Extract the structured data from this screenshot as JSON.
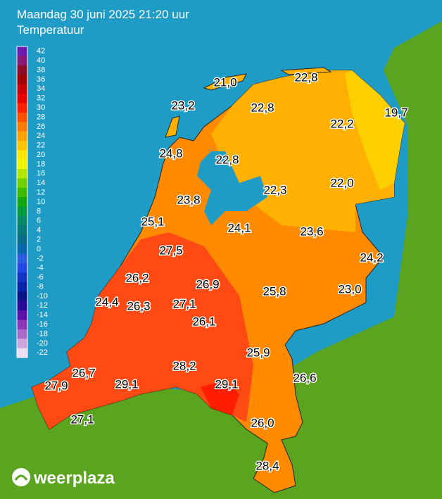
{
  "header": {
    "title": "Maandag 30 juni 2025 21:20 uur",
    "subtitle": "Temperatuur"
  },
  "legend": {
    "ticks": [
      {
        "value": 42,
        "color": "#6a1bb0"
      },
      {
        "value": 40,
        "color": "#8a1a7a"
      },
      {
        "value": 38,
        "color": "#8b0a2a"
      },
      {
        "value": 36,
        "color": "#a00000"
      },
      {
        "value": 34,
        "color": "#c80000"
      },
      {
        "value": 32,
        "color": "#e80000"
      },
      {
        "value": 30,
        "color": "#ff2000"
      },
      {
        "value": 28,
        "color": "#ff5000"
      },
      {
        "value": 26,
        "color": "#ff7c00"
      },
      {
        "value": 24,
        "color": "#ffa200"
      },
      {
        "value": 22,
        "color": "#ffc400"
      },
      {
        "value": 20,
        "color": "#ffe400"
      },
      {
        "value": 18,
        "color": "#eef600"
      },
      {
        "value": 16,
        "color": "#b4e800"
      },
      {
        "value": 14,
        "color": "#70d000"
      },
      {
        "value": 12,
        "color": "#3cbc00"
      },
      {
        "value": 10,
        "color": "#10aa10"
      },
      {
        "value": 8,
        "color": "#009a40"
      },
      {
        "value": 6,
        "color": "#008a66"
      },
      {
        "value": 4,
        "color": "#007a7a"
      },
      {
        "value": 2,
        "color": "#006e8c"
      },
      {
        "value": 0,
        "color": "#0068b0"
      },
      {
        "value": -2,
        "color": "#2a5ee0"
      },
      {
        "value": -4,
        "color": "#2248e8"
      },
      {
        "value": -6,
        "color": "#1434c8"
      },
      {
        "value": -8,
        "color": "#0a22a8"
      },
      {
        "value": -10,
        "color": "#0a1488"
      },
      {
        "value": -12,
        "color": "#280c98"
      },
      {
        "value": -14,
        "color": "#5a10a8"
      },
      {
        "value": -16,
        "color": "#8a38b8"
      },
      {
        "value": -18,
        "color": "#aa6ac8"
      },
      {
        "value": -20,
        "color": "#caa6dc"
      },
      {
        "value": -22,
        "color": "#eedcf0"
      }
    ]
  },
  "stations": [
    {
      "label": "21,0"
    },
    {
      "label": "22,8"
    },
    {
      "label": "23,2"
    },
    {
      "label": "22,8"
    },
    {
      "label": "19,7"
    },
    {
      "label": "22,2"
    },
    {
      "label": "24,8"
    },
    {
      "label": "22,8"
    },
    {
      "label": "22,3"
    },
    {
      "label": "22,0"
    },
    {
      "label": "23,8"
    },
    {
      "label": "25,1"
    },
    {
      "label": "24,1"
    },
    {
      "label": "23,6"
    },
    {
      "label": "27,5"
    },
    {
      "label": "24,2"
    },
    {
      "label": "26,2"
    },
    {
      "label": "26,9"
    },
    {
      "label": "25,8"
    },
    {
      "label": "23,0"
    },
    {
      "label": "24,4"
    },
    {
      "label": "26,3"
    },
    {
      "label": "27,1"
    },
    {
      "label": "26,1"
    },
    {
      "label": "25,9"
    },
    {
      "label": "28,2"
    },
    {
      "label": "26,7"
    },
    {
      "label": "29,1"
    },
    {
      "label": "29,1"
    },
    {
      "label": "26,6"
    },
    {
      "label": "27,9"
    },
    {
      "label": "27,1"
    },
    {
      "label": "26,0"
    },
    {
      "label": "28,4"
    }
  ],
  "brand": "weerplaza"
}
